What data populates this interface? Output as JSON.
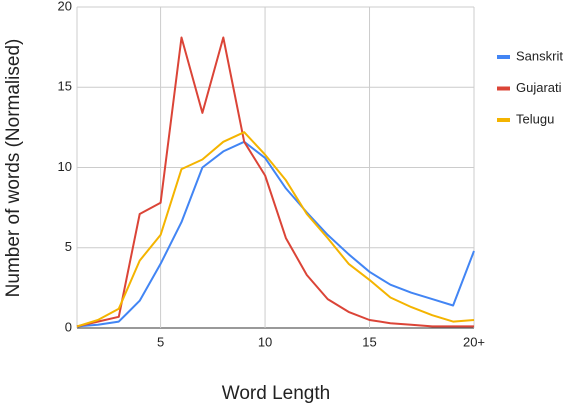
{
  "chart_data": {
    "type": "line",
    "x_label": "Word Length",
    "y_label": "Number of words (Normalised)",
    "x": [
      1,
      2,
      3,
      4,
      5,
      6,
      7,
      8,
      9,
      10,
      11,
      12,
      13,
      14,
      15,
      16,
      17,
      18,
      19,
      20
    ],
    "series": [
      {
        "name": "Sanskrit",
        "color": "#4285f4",
        "values": [
          0.1,
          0.2,
          0.4,
          1.7,
          4.0,
          6.6,
          10.0,
          11.0,
          11.6,
          10.6,
          8.7,
          7.2,
          5.8,
          4.6,
          3.5,
          2.7,
          2.2,
          1.8,
          1.4,
          4.8
        ]
      },
      {
        "name": "Gujarati",
        "color": "#db4437",
        "values": [
          0.1,
          0.4,
          0.7,
          7.1,
          7.8,
          18.1,
          13.4,
          18.1,
          11.6,
          9.5,
          5.6,
          3.3,
          1.8,
          1.0,
          0.5,
          0.3,
          0.2,
          0.1,
          0.1,
          0.1
        ]
      },
      {
        "name": "Telugu",
        "color": "#f4b400",
        "values": [
          0.1,
          0.5,
          1.2,
          4.2,
          5.8,
          9.9,
          10.5,
          11.6,
          12.2,
          10.8,
          9.2,
          7.1,
          5.6,
          4.0,
          3.0,
          1.9,
          1.3,
          0.8,
          0.4,
          0.5
        ]
      }
    ],
    "xlim": [
      1,
      20
    ],
    "xticks": [
      5,
      10,
      15,
      {
        "value": 20,
        "label": "20+"
      }
    ],
    "ylim": [
      0,
      20
    ],
    "yticks": [
      0,
      5,
      10,
      15,
      20
    ],
    "grid": true,
    "legend": "right"
  }
}
